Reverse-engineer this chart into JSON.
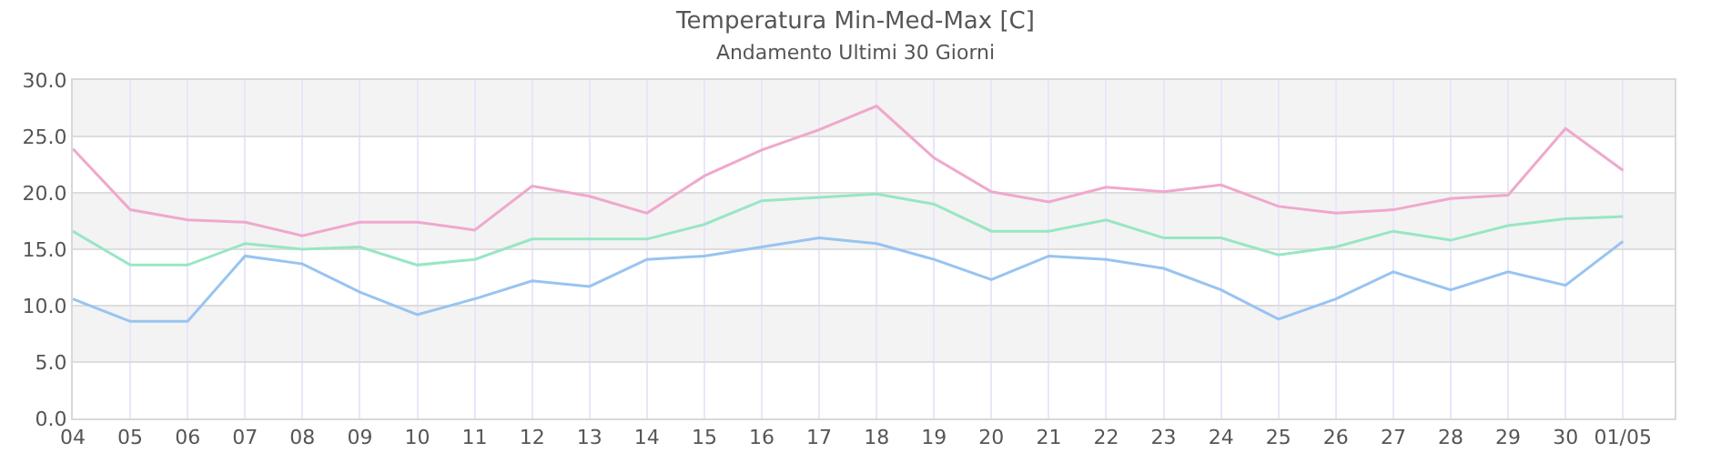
{
  "chart_data": {
    "type": "line",
    "title": "Temperatura Min-Med-Max [C]",
    "subtitle": "Andamento Ultimi 30 Giorni",
    "categories": [
      "04",
      "05",
      "06",
      "07",
      "08",
      "09",
      "10",
      "11",
      "12",
      "13",
      "14",
      "15",
      "16",
      "17",
      "18",
      "19",
      "20",
      "21",
      "22",
      "23",
      "24",
      "25",
      "26",
      "27",
      "28",
      "29",
      "30",
      "01/05"
    ],
    "series": [
      {
        "color": "#f0a8cc",
        "values": [
          23.9,
          18.5,
          17.6,
          17.4,
          16.2,
          17.4,
          17.4,
          16.7,
          20.6,
          19.7,
          18.2,
          21.5,
          23.8,
          25.6,
          27.7,
          23.1,
          20.1,
          19.2,
          20.5,
          20.1,
          20.7,
          18.8,
          18.2,
          18.5,
          19.5,
          19.8,
          25.7,
          22.0
        ]
      },
      {
        "color": "#98e6c4",
        "values": [
          16.6,
          13.6,
          13.6,
          15.5,
          15.0,
          15.2,
          13.6,
          14.1,
          15.9,
          15.9,
          15.9,
          17.2,
          19.3,
          19.6,
          19.9,
          19.0,
          16.6,
          16.6,
          17.6,
          16.0,
          16.0,
          14.5,
          15.2,
          16.6,
          15.8,
          17.1,
          17.7,
          17.9
        ]
      },
      {
        "color": "#98c4f0",
        "values": [
          10.6,
          8.6,
          8.6,
          14.4,
          13.7,
          11.2,
          9.2,
          10.6,
          12.2,
          11.7,
          14.1,
          14.4,
          15.2,
          16.0,
          15.5,
          14.1,
          12.3,
          14.4,
          14.1,
          13.3,
          11.4,
          8.8,
          10.6,
          13.0,
          11.4,
          13.0,
          11.8,
          15.7
        ]
      }
    ],
    "ylim": [
      0,
      30
    ],
    "yticks": [
      {
        "value": 0,
        "label": "0.0"
      },
      {
        "value": 5,
        "label": "5.0"
      },
      {
        "value": 10,
        "label": "10.0"
      },
      {
        "value": 15,
        "label": "15.0"
      },
      {
        "value": 20,
        "label": "20.0"
      },
      {
        "value": 25,
        "label": "25.0"
      },
      {
        "value": 30,
        "label": "30.0"
      }
    ],
    "grid": true,
    "marker": "none",
    "line_style": "solid"
  }
}
